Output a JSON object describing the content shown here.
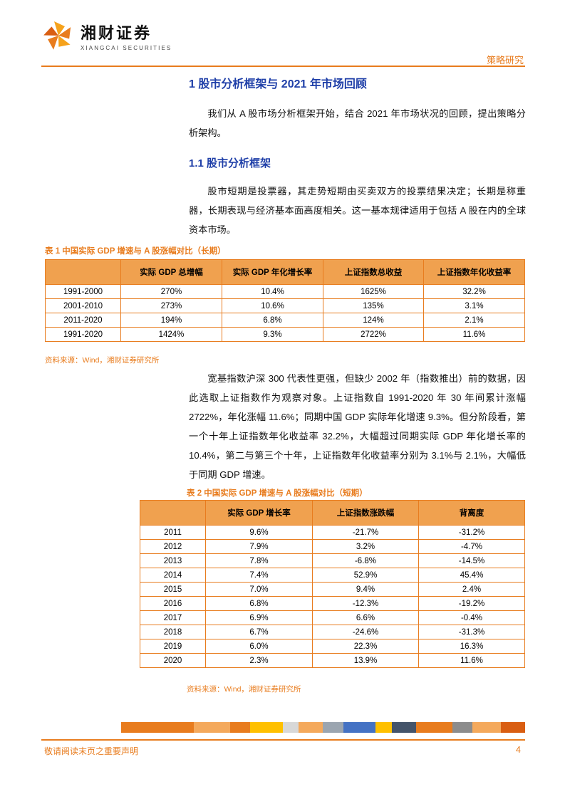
{
  "page": {
    "brand": {
      "name_cn": "湘财证券",
      "name_en": "XIANGCAI SECURITIES"
    },
    "header_right": "策略研究",
    "footer": {
      "disclaimer": "敬请阅读末页之重要声明",
      "page_number": "4"
    }
  },
  "colors": {
    "brand_orange": "#E87C1E",
    "heading_blue": "#1F3FA8",
    "table_header_bg": "#F0A14F",
    "table_border": "#E87C1E"
  },
  "content": {
    "h1": "1 股市分析框架与 2021 年市场回顾",
    "p1": "我们从 A 股市场分析框架开始，结合 2021 年市场状况的回顾，提出策略分析架构。",
    "h2": "1.1 股市分析框架",
    "p2": "股市短期是投票器，其走势短期由买卖双方的投票结果决定；长期是称重器，长期表现与经济基本面高度相关。这一基本规律适用于包括 A 股在内的全球资本市场。",
    "p3": "宽基指数沪深 300 代表性更强，但缺少 2002 年（指数推出）前的数据，因此选取上证指数作为观察对象。上证指数自 1991-2020 年 30 年间累计涨幅 2722%，年化涨幅 11.6%；同期中国 GDP 实际年化增速 9.3%。但分阶段看，第一个十年上证指数年化收益率 32.2%，大幅超过同期实际 GDP 年化增长率的 10.4%，第二与第三个十年，上证指数年化收益率分别为 3.1%与 2.1%，大幅低于同期 GDP 增速。"
  },
  "table1": {
    "caption": "表 1 中国实际 GDP 增速与 A 股涨幅对比（长期）",
    "headers": [
      "",
      "实际 GDP 总增幅",
      "实际 GDP 年化增长率",
      "上证指数总收益",
      "上证指数年化收益率"
    ],
    "rows": [
      [
        "1991-2000",
        "270%",
        "10.4%",
        "1625%",
        "32.2%"
      ],
      [
        "2001-2010",
        "273%",
        "10.6%",
        "135%",
        "3.1%"
      ],
      [
        "2011-2020",
        "194%",
        "6.8%",
        "124%",
        "2.1%"
      ],
      [
        "1991-2020",
        "1424%",
        "9.3%",
        "2722%",
        "11.6%"
      ]
    ],
    "source": "资料来源：Wind，湘财证券研究所"
  },
  "table2": {
    "caption": "表 2 中国实际 GDP 增速与 A 股涨幅对比（短期）",
    "headers": [
      "",
      "实际 GDP 增长率",
      "上证指数涨跌幅",
      "背离度"
    ],
    "rows": [
      [
        "2011",
        "9.6%",
        "-21.7%",
        "-31.2%"
      ],
      [
        "2012",
        "7.9%",
        "3.2%",
        "-4.7%"
      ],
      [
        "2013",
        "7.8%",
        "-6.8%",
        "-14.5%"
      ],
      [
        "2014",
        "7.4%",
        "52.9%",
        "45.4%"
      ],
      [
        "2015",
        "7.0%",
        "9.4%",
        "2.4%"
      ],
      [
        "2016",
        "6.8%",
        "-12.3%",
        "-19.2%"
      ],
      [
        "2017",
        "6.9%",
        "6.6%",
        "-0.4%"
      ],
      [
        "2018",
        "6.7%",
        "-24.6%",
        "-31.3%"
      ],
      [
        "2019",
        "6.0%",
        "22.3%",
        "16.3%"
      ],
      [
        "2020",
        "2.3%",
        "13.9%",
        "11.6%"
      ]
    ],
    "source": "资料来源：Wind，湘财证券研究所"
  },
  "footer_bar": {
    "segments": [
      {
        "color": "#E87C1E",
        "width": 18
      },
      {
        "color": "#F4A95C",
        "width": 9
      },
      {
        "color": "#E87C1E",
        "width": 5
      },
      {
        "color": "#FFC000",
        "width": 8
      },
      {
        "color": "#D8D8D8",
        "width": 4
      },
      {
        "color": "#F4A95C",
        "width": 6
      },
      {
        "color": "#9BA5B0",
        "width": 5
      },
      {
        "color": "#4472C4",
        "width": 8
      },
      {
        "color": "#FFC000",
        "width": 4
      },
      {
        "color": "#44546A",
        "width": 6
      },
      {
        "color": "#E87C1E",
        "width": 9
      },
      {
        "color": "#8C8C8C",
        "width": 5
      },
      {
        "color": "#F4A95C",
        "width": 7
      },
      {
        "color": "#D95E12",
        "width": 6
      }
    ]
  }
}
